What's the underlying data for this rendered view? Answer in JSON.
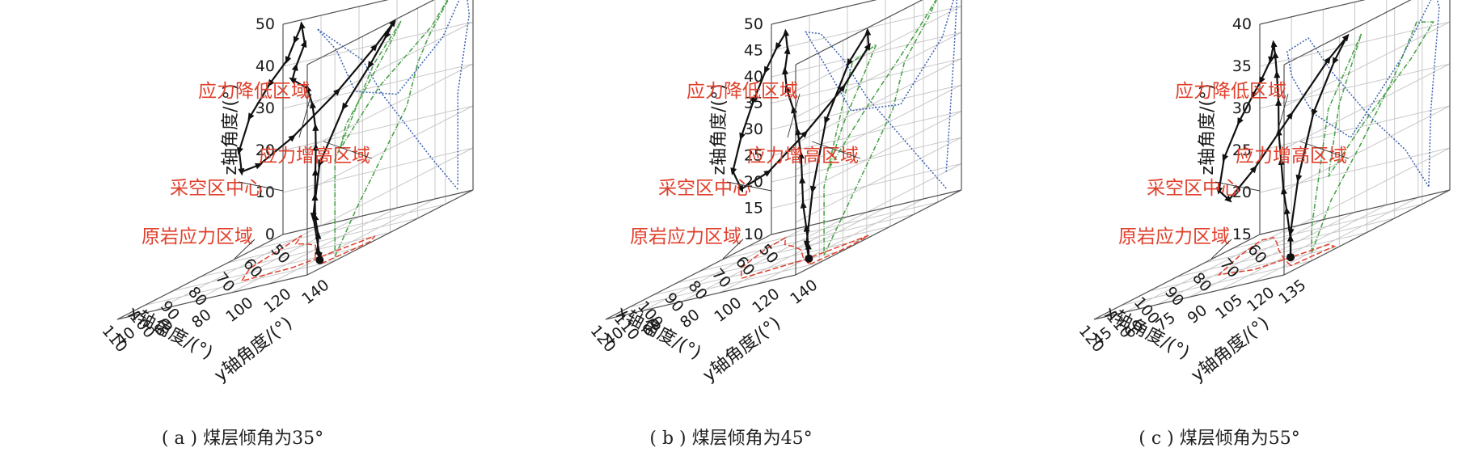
{
  "chart_data": [
    {
      "type": "line3d",
      "caption": "( a ) 煤层倾角为35°",
      "xlabel": "x轴角度/(°)",
      "ylabel": "y轴角度/(°)",
      "zlabel": "z轴角度/(°)",
      "xlim": [
        50,
        110
      ],
      "ylim": [
        40,
        140
      ],
      "zlim": [
        0,
        50
      ],
      "xticks": [
        50,
        60,
        70,
        80,
        90,
        100,
        110
      ],
      "yticks": [
        40,
        60,
        80,
        100,
        120,
        140
      ],
      "zticks": [
        0,
        10,
        20,
        30,
        40,
        50
      ],
      "annotations": [
        "应力降低区域",
        "应力增高区域",
        "采空区中心",
        "原岩应力区域"
      ],
      "trajectory": [
        [
          100,
          132,
          1
        ],
        [
          98,
          128,
          3
        ],
        [
          95,
          124,
          6
        ],
        [
          92,
          118,
          10
        ],
        [
          88,
          112,
          14
        ],
        [
          83,
          105,
          19
        ],
        [
          78,
          98,
          24
        ],
        [
          74,
          92,
          28
        ],
        [
          71,
          86,
          33
        ],
        [
          70,
          82,
          37
        ],
        [
          70,
          74,
          40
        ],
        [
          66,
          70,
          42
        ],
        [
          60,
          66,
          46
        ],
        [
          57,
          60,
          50
        ],
        [
          58,
          58,
          47
        ],
        [
          65,
          64,
          44
        ],
        [
          74,
          68,
          41
        ],
        [
          84,
          72,
          36
        ],
        [
          92,
          78,
          30
        ],
        [
          98,
          88,
          26
        ],
        [
          100,
          100,
          27
        ],
        [
          96,
          112,
          31
        ],
        [
          88,
          124,
          38
        ],
        [
          80,
          132,
          45
        ],
        [
          76,
          136,
          49
        ],
        [
          80,
          138,
          47
        ],
        [
          86,
          138,
          42
        ],
        [
          94,
          136,
          35
        ],
        [
          100,
          132,
          24
        ],
        [
          101,
          130,
          12
        ],
        [
          100,
          132,
          2
        ]
      ],
      "projection_xz": [
        [
          100,
          1
        ],
        [
          92,
          10
        ],
        [
          83,
          19
        ],
        [
          74,
          28
        ],
        [
          70,
          37
        ],
        [
          66,
          42
        ],
        [
          57,
          50
        ],
        [
          65,
          44
        ],
        [
          84,
          36
        ],
        [
          98,
          26
        ],
        [
          96,
          31
        ],
        [
          80,
          45
        ],
        [
          76,
          49
        ],
        [
          86,
          42
        ],
        [
          100,
          24
        ],
        [
          100,
          2
        ]
      ],
      "projection_yz": [
        [
          132,
          1
        ],
        [
          118,
          10
        ],
        [
          105,
          19
        ],
        [
          92,
          28
        ],
        [
          82,
          37
        ],
        [
          70,
          42
        ],
        [
          58,
          47
        ],
        [
          68,
          41
        ],
        [
          78,
          30
        ],
        [
          100,
          27
        ],
        [
          124,
          38
        ],
        [
          136,
          49
        ],
        [
          138,
          42
        ],
        [
          132,
          24
        ],
        [
          132,
          2
        ]
      ],
      "projection_xy": [
        [
          100,
          132
        ],
        [
          92,
          118
        ],
        [
          83,
          105
        ],
        [
          74,
          92
        ],
        [
          70,
          82
        ],
        [
          66,
          70
        ],
        [
          57,
          60
        ],
        [
          65,
          64
        ],
        [
          84,
          72
        ],
        [
          98,
          88
        ],
        [
          96,
          112
        ],
        [
          80,
          132
        ],
        [
          86,
          138
        ],
        [
          100,
          132
        ]
      ]
    },
    {
      "type": "line3d",
      "caption": "( b ) 煤层倾角为45°",
      "xlabel": "x轴角度/(°)",
      "ylabel": "y轴角度/(°)",
      "zlabel": "z轴角度/(°)",
      "xlim": [
        50,
        120
      ],
      "ylim": [
        40,
        140
      ],
      "zlim": [
        10,
        50
      ],
      "xticks": [
        50,
        60,
        70,
        80,
        90,
        100,
        110,
        120
      ],
      "yticks": [
        40,
        60,
        80,
        100,
        120,
        140
      ],
      "zticks": [
        10,
        15,
        20,
        25,
        30,
        35,
        40,
        45,
        50
      ],
      "annotations": [
        "应力降低区域",
        "应力增高区域",
        "采空区中心",
        "原岩应力区域"
      ],
      "trajectory": [
        [
          108,
          132,
          11
        ],
        [
          105,
          128,
          13
        ],
        [
          101,
          122,
          16
        ],
        [
          96,
          114,
          20
        ],
        [
          90,
          106,
          24
        ],
        [
          84,
          98,
          28
        ],
        [
          79,
          90,
          32
        ],
        [
          76,
          84,
          36
        ],
        [
          74,
          78,
          40
        ],
        [
          70,
          72,
          43
        ],
        [
          64,
          66,
          46
        ],
        [
          60,
          60,
          49
        ],
        [
          62,
          58,
          47
        ],
        [
          70,
          62,
          44
        ],
        [
          80,
          68,
          40
        ],
        [
          90,
          74,
          35
        ],
        [
          100,
          82,
          30
        ],
        [
          106,
          94,
          27
        ],
        [
          106,
          108,
          29
        ],
        [
          100,
          120,
          34
        ],
        [
          92,
          130,
          40
        ],
        [
          86,
          136,
          46
        ],
        [
          88,
          138,
          49
        ],
        [
          96,
          138,
          45
        ],
        [
          104,
          136,
          36
        ],
        [
          108,
          134,
          24
        ],
        [
          109,
          132,
          14
        ],
        [
          108,
          132,
          11
        ]
      ],
      "projection_xz": [
        [
          108,
          11
        ],
        [
          101,
          16
        ],
        [
          90,
          24
        ],
        [
          79,
          32
        ],
        [
          74,
          40
        ],
        [
          64,
          46
        ],
        [
          60,
          49
        ],
        [
          70,
          44
        ],
        [
          90,
          35
        ],
        [
          106,
          27
        ],
        [
          100,
          34
        ],
        [
          86,
          46
        ],
        [
          96,
          45
        ],
        [
          108,
          24
        ],
        [
          108,
          11
        ]
      ],
      "projection_yz": [
        [
          132,
          11
        ],
        [
          122,
          16
        ],
        [
          106,
          24
        ],
        [
          90,
          32
        ],
        [
          78,
          40
        ],
        [
          66,
          46
        ],
        [
          58,
          47
        ],
        [
          68,
          40
        ],
        [
          82,
          30
        ],
        [
          108,
          29
        ],
        [
          130,
          40
        ],
        [
          138,
          49
        ],
        [
          136,
          36
        ],
        [
          132,
          14
        ]
      ],
      "projection_xy": [
        [
          108,
          132
        ],
        [
          96,
          114
        ],
        [
          84,
          98
        ],
        [
          76,
          84
        ],
        [
          70,
          72
        ],
        [
          60,
          60
        ],
        [
          70,
          62
        ],
        [
          90,
          74
        ],
        [
          106,
          94
        ],
        [
          100,
          120
        ],
        [
          86,
          136
        ],
        [
          96,
          138
        ],
        [
          108,
          134
        ],
        [
          108,
          132
        ]
      ]
    },
    {
      "type": "line3d",
      "caption": "( c ) 煤层倾角为55°",
      "xlabel": "x轴角度/(°)",
      "ylabel": "y轴角度/(°)",
      "zlabel": "z轴角度/(°)",
      "xlim": [
        60,
        120
      ],
      "ylim": [
        45,
        135
      ],
      "zlim": [
        15,
        40
      ],
      "xticks": [
        60,
        70,
        80,
        90,
        100,
        110,
        120
      ],
      "yticks": [
        45,
        60,
        75,
        90,
        105,
        120,
        135
      ],
      "zticks": [
        15,
        20,
        25,
        30,
        35,
        40
      ],
      "annotations": [
        "应力降低区域",
        "应力增高区域",
        "采空区中心",
        "原岩应力区域"
      ],
      "trajectory": [
        [
          110,
          125,
          16
        ],
        [
          107,
          121,
          18
        ],
        [
          103,
          114,
          21
        ],
        [
          98,
          106,
          23
        ],
        [
          92,
          97,
          26
        ],
        [
          86,
          88,
          29
        ],
        [
          80,
          80,
          32
        ],
        [
          76,
          74,
          35
        ],
        [
          72,
          68,
          37
        ],
        [
          68,
          62,
          38
        ],
        [
          66,
          58,
          36
        ],
        [
          68,
          56,
          34
        ],
        [
          74,
          60,
          33
        ],
        [
          82,
          64,
          31
        ],
        [
          92,
          70,
          28
        ],
        [
          100,
          78,
          25
        ],
        [
          104,
          88,
          24
        ],
        [
          104,
          100,
          27
        ],
        [
          100,
          112,
          32
        ],
        [
          94,
          122,
          37
        ],
        [
          92,
          128,
          39
        ],
        [
          98,
          130,
          37
        ],
        [
          104,
          128,
          32
        ],
        [
          108,
          126,
          25
        ],
        [
          110,
          125,
          19
        ],
        [
          110,
          125,
          16
        ]
      ],
      "projection_xz": [
        [
          110,
          16
        ],
        [
          103,
          21
        ],
        [
          92,
          26
        ],
        [
          80,
          32
        ],
        [
          72,
          37
        ],
        [
          66,
          36
        ],
        [
          74,
          33
        ],
        [
          92,
          28
        ],
        [
          104,
          24
        ],
        [
          100,
          32
        ],
        [
          92,
          39
        ],
        [
          104,
          32
        ],
        [
          110,
          19
        ],
        [
          110,
          16
        ]
      ],
      "projection_yz": [
        [
          125,
          16
        ],
        [
          114,
          21
        ],
        [
          97,
          26
        ],
        [
          80,
          32
        ],
        [
          68,
          37
        ],
        [
          58,
          36
        ],
        [
          60,
          33
        ],
        [
          70,
          28
        ],
        [
          88,
          24
        ],
        [
          112,
          32
        ],
        [
          128,
          39
        ],
        [
          130,
          37
        ],
        [
          126,
          25
        ],
        [
          125,
          16
        ]
      ],
      "projection_xy": [
        [
          110,
          125
        ],
        [
          98,
          106
        ],
        [
          86,
          88
        ],
        [
          76,
          74
        ],
        [
          68,
          62
        ],
        [
          68,
          56
        ],
        [
          82,
          64
        ],
        [
          100,
          78
        ],
        [
          104,
          100
        ],
        [
          94,
          122
        ],
        [
          98,
          130
        ],
        [
          108,
          126
        ],
        [
          110,
          125
        ]
      ]
    }
  ]
}
